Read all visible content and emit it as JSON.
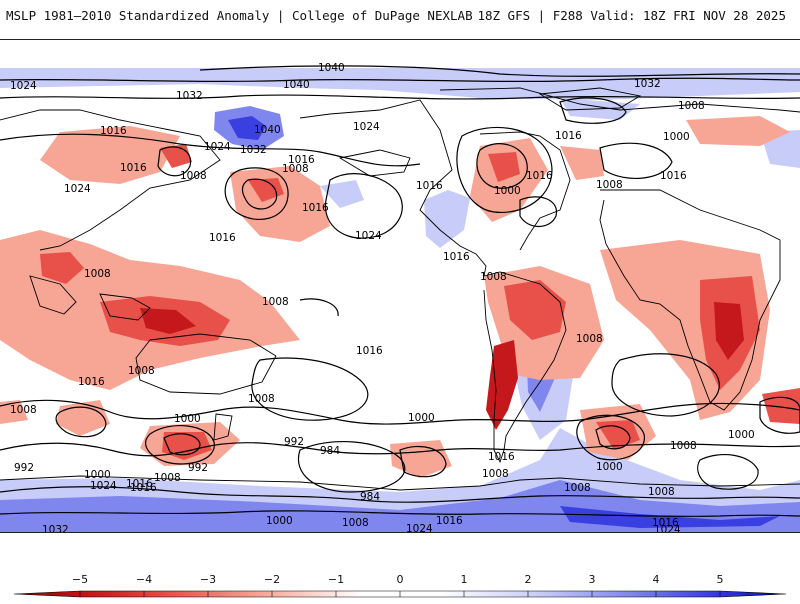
{
  "header": {
    "left_title": "MSLP 1981–2010 Standardized Anomaly | College of DuPage NEXLAB",
    "right_title": "18Z GFS | F288 Valid: 18Z FRI NOV 28 2025"
  },
  "colors": {
    "neg_strong": "#c4181c",
    "neg_mid": "#e8504a",
    "neg_light": "#f7a595",
    "pos_light": "#c8ccf8",
    "pos_mid": "#7f86ee",
    "pos_strong": "#3a3fe0",
    "coast": "#000000",
    "isobar": "#000000"
  },
  "colorbar": {
    "ticks": [
      "−5",
      "−4",
      "−3",
      "−2",
      "−1",
      "0",
      "1",
      "2",
      "3",
      "4",
      "5"
    ],
    "values": [
      -5,
      -4,
      -3,
      -2,
      -1,
      0,
      1,
      2,
      3,
      4,
      5
    ]
  },
  "isobar_labels": [
    "1040",
    "1040",
    "1024",
    "1032",
    "1040",
    "1032",
    "1024",
    "1032",
    "1016",
    "1024",
    "1008",
    "1016",
    "1024",
    "1016",
    "1008",
    "1008",
    "1016",
    "1000",
    "1016",
    "1016",
    "1008",
    "1024",
    "1000",
    "1016",
    "1008",
    "1016",
    "1016",
    "1016",
    "1008",
    "1008",
    "1008",
    "1016",
    "1008",
    "1008",
    "1016",
    "1008",
    "1000",
    "1000",
    "992",
    "992",
    "984",
    "1000",
    "1016",
    "1008",
    "984",
    "992",
    "1000",
    "1008",
    "1016",
    "1000",
    "1008",
    "1024",
    "1016",
    "1032",
    "1016",
    "1016",
    "1024",
    "1008",
    "1008",
    "1000",
    "1008",
    "1024"
  ]
}
